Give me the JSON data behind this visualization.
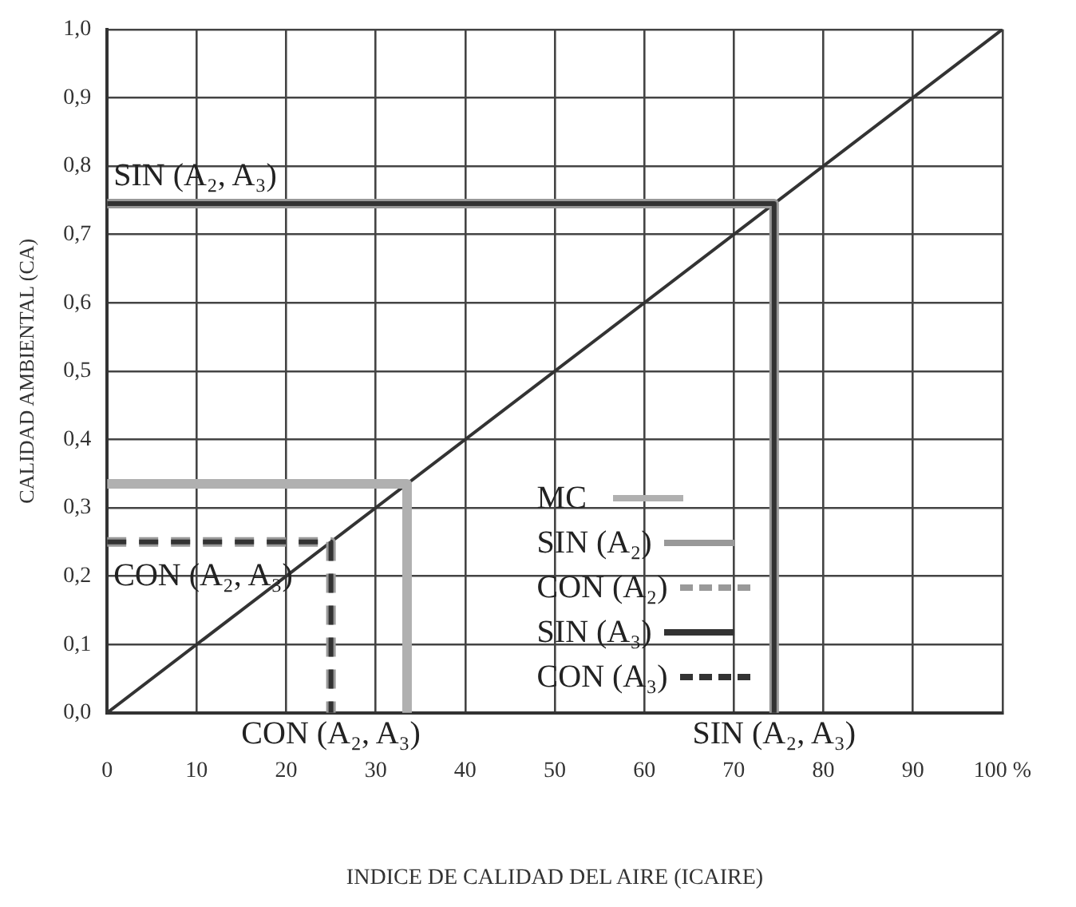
{
  "chart_data": {
    "type": "line",
    "xlabel": "INDICE DE CALIDAD DEL AIRE (ICAIRE)",
    "ylabel": "CALIDAD AMBIENTAL (CA)",
    "xlim": [
      0,
      100
    ],
    "ylim": [
      0,
      1
    ],
    "xticks": [
      0,
      10,
      20,
      30,
      40,
      50,
      60,
      70,
      80,
      90,
      {
        "value": 100,
        "label": "100 %"
      }
    ],
    "yticks": [
      {
        "value": 0,
        "label": "0,0"
      },
      {
        "value": 0.1,
        "label": "0,1"
      },
      {
        "value": 0.2,
        "label": "0,2"
      },
      {
        "value": 0.3,
        "label": "0,3"
      },
      {
        "value": 0.4,
        "label": "0,4"
      },
      {
        "value": 0.5,
        "label": "0,5"
      },
      {
        "value": 0.6,
        "label": "0,6"
      },
      {
        "value": 0.7,
        "label": "0,7"
      },
      {
        "value": 0.8,
        "label": "0,8"
      },
      {
        "value": 0.9,
        "label": "0,9"
      },
      {
        "value": 1,
        "label": "1,0"
      }
    ],
    "grid": true,
    "legend": "bottom",
    "marker": "none",
    "series": [
      {
        "color": "#333333",
        "x": [
          0,
          100
        ],
        "values": [
          0,
          1
        ],
        "line_style": "solid"
      },
      {
        "name": "MC",
        "color": "#b0b0b0",
        "x": [
          0,
          33.5,
          33.5
        ],
        "values": [
          0.335,
          0.335,
          0
        ],
        "line_style": "solid"
      },
      {
        "name": "SIN (A₂)",
        "color": "#999999",
        "x": [
          0,
          74.5,
          74.5
        ],
        "values": [
          0.745,
          0.745,
          0
        ],
        "line_style": "solid"
      },
      {
        "name": "CON (A₂)",
        "color": "#999999",
        "x": [
          0,
          25,
          25
        ],
        "values": [
          0.25,
          0.25,
          0
        ],
        "line_style": "dashed"
      },
      {
        "name": "SIN (A₃)",
        "color": "#333333",
        "x": [
          0,
          74.5,
          74.5
        ],
        "values": [
          0.745,
          0.745,
          0
        ],
        "line_style": "solid"
      },
      {
        "name": "CON (A₃)",
        "color": "#333333",
        "x": [
          0,
          25,
          25
        ],
        "values": [
          0.25,
          0.25,
          0
        ],
        "line_style": "dashed"
      }
    ],
    "annotations": [
      {
        "text": "SIN (A₂, A₃)",
        "x": 0,
        "y": 0.745
      },
      {
        "text": "CON (A₂, A₃)",
        "x": 0,
        "y": 0.25
      },
      {
        "text": "CON (A₂, A₃)",
        "x": 25,
        "y": 0
      },
      {
        "text": "SIN (A₂, A₃)",
        "x": 74.5,
        "y": 0
      }
    ]
  }
}
